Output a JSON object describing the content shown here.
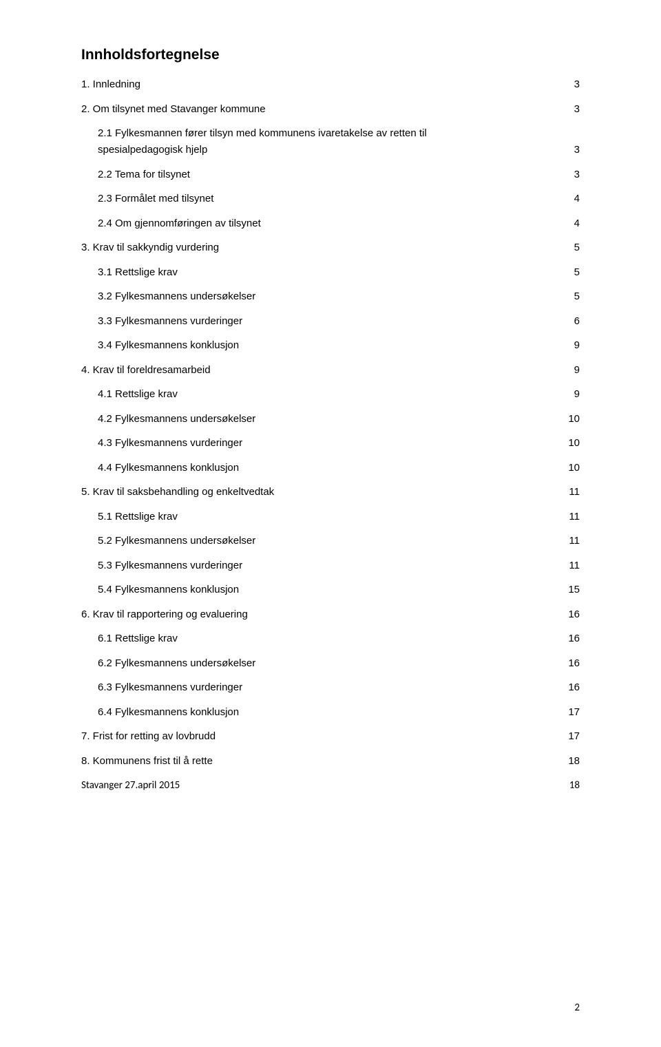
{
  "title": "Innholdsfortegnelse",
  "entries": [
    {
      "level": 1,
      "label": "1. Innledning",
      "page": "3",
      "cls": ""
    },
    {
      "level": 1,
      "label": "2. Om tilsynet med Stavanger kommune",
      "page": "3",
      "cls": ""
    },
    {
      "level": 2,
      "label": "2.1 Fylkesmannen fører tilsyn med kommunens ivaretakelse av retten til spesialpedagogisk hjelp",
      "page": "3",
      "cls": "",
      "wrap": true
    },
    {
      "level": 2,
      "label": "2.2 Tema for tilsynet",
      "page": "3",
      "cls": ""
    },
    {
      "level": 2,
      "label": "2.3 Formålet med tilsynet",
      "page": "4",
      "cls": ""
    },
    {
      "level": 2,
      "label": "2.4 Om gjennomføringen av tilsynet",
      "page": "4",
      "cls": ""
    },
    {
      "level": 1,
      "label": "3. Krav til sakkyndig vurdering",
      "page": "5",
      "cls": ""
    },
    {
      "level": 2,
      "label": "3.1 Rettslige krav",
      "page": "5",
      "cls": ""
    },
    {
      "level": 2,
      "label": "3.2 Fylkesmannens undersøkelser",
      "page": "5",
      "cls": ""
    },
    {
      "level": 2,
      "label": "3.3 Fylkesmannens vurderinger",
      "page": "6",
      "cls": ""
    },
    {
      "level": 2,
      "label": "3.4 Fylkesmannens konklusjon",
      "page": "9",
      "cls": ""
    },
    {
      "level": 1,
      "label": "4. Krav til foreldresamarbeid",
      "page": "9",
      "cls": ""
    },
    {
      "level": 2,
      "label": "4.1 Rettslige krav",
      "page": "9",
      "cls": ""
    },
    {
      "level": 2,
      "label": "4.2 Fylkesmannens undersøkelser",
      "page": "10",
      "cls": ""
    },
    {
      "level": 2,
      "label": "4.3 Fylkesmannens vurderinger",
      "page": "10",
      "cls": ""
    },
    {
      "level": 2,
      "label": "4.4 Fylkesmannens konklusjon",
      "page": "10",
      "cls": ""
    },
    {
      "level": 1,
      "label": "5. Krav til saksbehandling og enkeltvedtak",
      "page": "11",
      "cls": ""
    },
    {
      "level": 2,
      "label": "5.1 Rettslige krav",
      "page": "11",
      "cls": ""
    },
    {
      "level": 2,
      "label": "5.2 Fylkesmannens undersøkelser",
      "page": "11",
      "cls": ""
    },
    {
      "level": 2,
      "label": "5.3 Fylkesmannens vurderinger",
      "page": "11",
      "cls": ""
    },
    {
      "level": 2,
      "label": "5.4 Fylkesmannens konklusjon",
      "page": "15",
      "cls": ""
    },
    {
      "level": 1,
      "label": "6. Krav til rapportering og evaluering",
      "page": "16",
      "cls": ""
    },
    {
      "level": 2,
      "label": "6.1 Rettslige krav",
      "page": "16",
      "cls": ""
    },
    {
      "level": 2,
      "label": "6.2 Fylkesmannens undersøkelser",
      "page": "16",
      "cls": ""
    },
    {
      "level": 2,
      "label": "6.3 Fylkesmannens vurderinger",
      "page": "16",
      "cls": ""
    },
    {
      "level": 2,
      "label": "6.4 Fylkesmannens konklusjon",
      "page": "17",
      "cls": ""
    },
    {
      "level": 1,
      "label": "7. Frist for retting av lovbrudd",
      "page": "17",
      "cls": ""
    },
    {
      "level": 1,
      "label": "8. Kommunens frist til å rette",
      "page": "18",
      "cls": ""
    },
    {
      "level": 1,
      "label": "Stavanger 27.april 2015",
      "page": "18",
      "cls": "last-row"
    }
  ],
  "footerPage": "2",
  "wrapBreak": "2.1 Fylkesmannen fører tilsyn med kommunens ivaretakelse av retten til"
}
